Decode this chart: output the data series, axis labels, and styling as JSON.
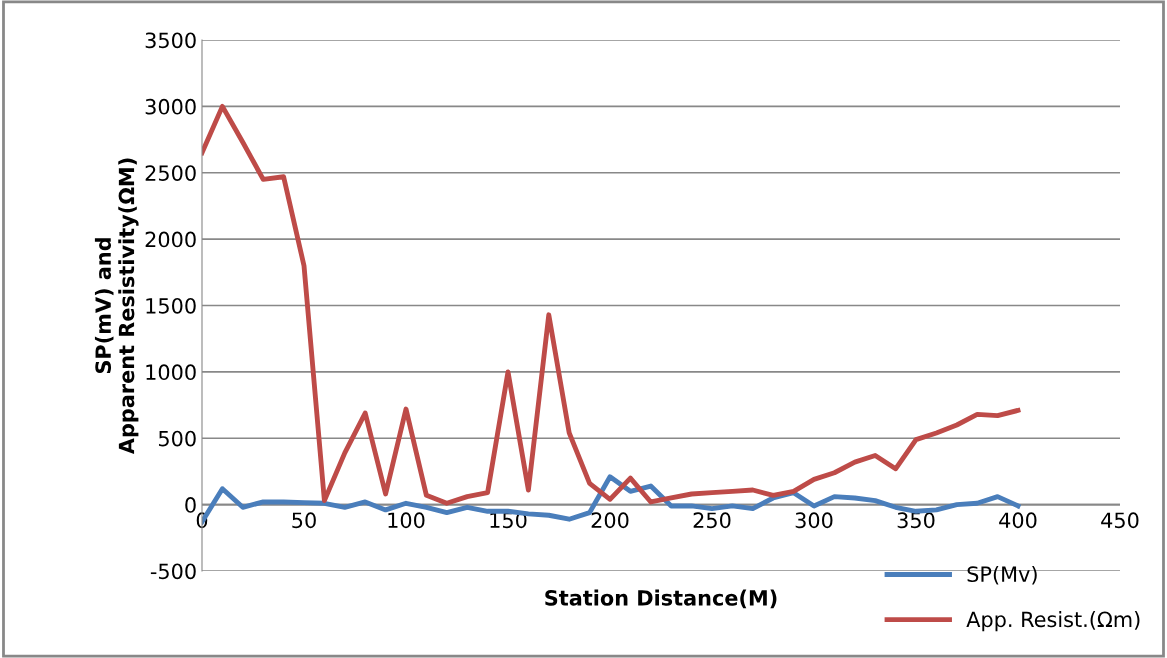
{
  "chart_data": {
    "type": "line",
    "xlabel": "Station Distance(M)",
    "ylabel": "SP(mV) and\nApparent Resistivity(ΩM)",
    "x": [
      0,
      10,
      20,
      30,
      40,
      50,
      60,
      70,
      80,
      90,
      100,
      110,
      120,
      130,
      140,
      150,
      160,
      170,
      180,
      190,
      200,
      210,
      220,
      230,
      240,
      250,
      260,
      270,
      280,
      290,
      300,
      310,
      320,
      330,
      340,
      350,
      360,
      370,
      380,
      390,
      400
    ],
    "series": [
      {
        "name": "SP(Mv)",
        "color": "#4a7ebb",
        "values": [
          -130,
          120,
          -20,
          20,
          20,
          15,
          10,
          -20,
          20,
          -40,
          10,
          -20,
          -60,
          -20,
          -50,
          -50,
          -70,
          -80,
          -110,
          -60,
          210,
          100,
          140,
          -10,
          -10,
          -30,
          -10,
          -30,
          50,
          90,
          -10,
          60,
          50,
          30,
          -20,
          -50,
          -40,
          0,
          10,
          60,
          -10
        ]
      },
      {
        "name": "App. Resist.(Ωm)",
        "color": "#be4b48",
        "values": [
          2650,
          3000,
          2730,
          2450,
          2470,
          1800,
          30,
          390,
          690,
          80,
          720,
          70,
          10,
          60,
          90,
          1000,
          110,
          1430,
          540,
          160,
          40,
          200,
          20,
          50,
          80,
          90,
          100,
          110,
          70,
          100,
          190,
          240,
          320,
          370,
          270,
          490,
          540,
          600,
          680,
          670,
          710
        ]
      }
    ],
    "xlim": [
      0,
      450
    ],
    "xticks": [
      0,
      50,
      100,
      150,
      200,
      250,
      300,
      350,
      400,
      450
    ],
    "ylim": [
      -500,
      3500
    ],
    "yticks": [
      -500,
      0,
      500,
      1000,
      1500,
      2000,
      2500,
      3000,
      3500
    ],
    "grid": "y",
    "legend": "bottom right",
    "marker": "none",
    "line_style": "solid"
  }
}
